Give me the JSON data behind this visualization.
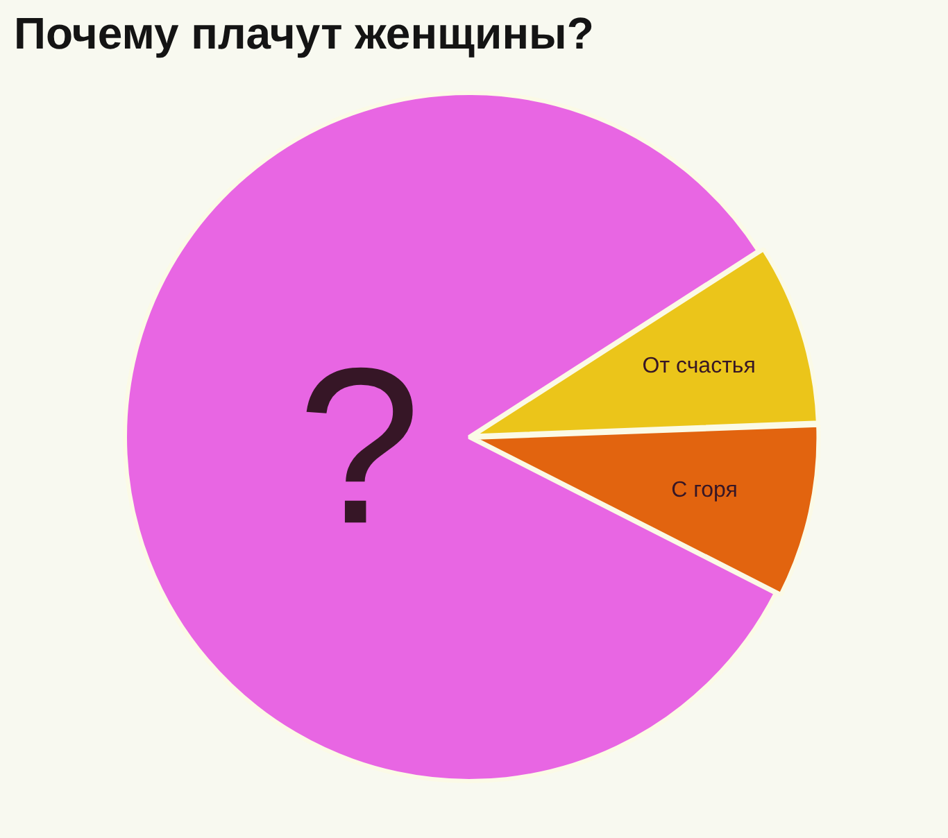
{
  "chart_data": {
    "type": "pie",
    "title": "Почему плачут женщины?",
    "categories": [
      "?",
      "От счастья",
      "С горя"
    ],
    "values": [
      83.4,
      8.5,
      8.1
    ],
    "colors": [
      "#e866e3",
      "#ebc51a",
      "#e2640f"
    ]
  }
}
